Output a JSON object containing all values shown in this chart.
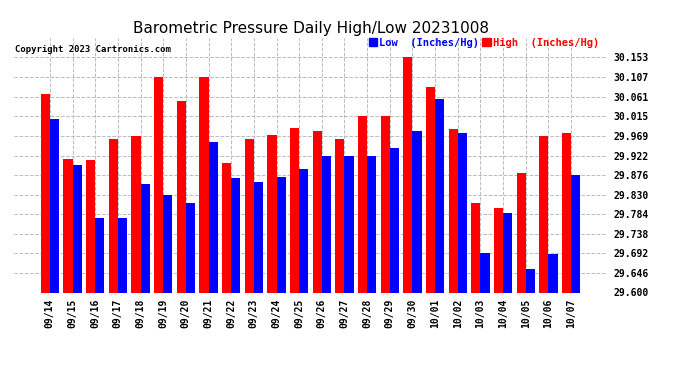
{
  "title": "Barometric Pressure Daily High/Low 20231008",
  "copyright": "Copyright 2023 Cartronics.com",
  "legend_low": "Low  (Inches/Hg)",
  "legend_high": "High  (Inches/Hg)",
  "dates": [
    "09/14",
    "09/15",
    "09/16",
    "09/17",
    "09/18",
    "09/19",
    "09/20",
    "09/21",
    "09/22",
    "09/23",
    "09/24",
    "09/25",
    "09/26",
    "09/27",
    "09/28",
    "09/29",
    "09/30",
    "10/01",
    "10/02",
    "10/03",
    "10/04",
    "10/05",
    "10/06",
    "10/07"
  ],
  "high_values": [
    30.068,
    29.915,
    29.912,
    29.96,
    29.968,
    30.107,
    30.05,
    30.107,
    29.905,
    29.96,
    29.97,
    29.988,
    29.98,
    29.96,
    30.016,
    30.016,
    30.153,
    30.083,
    29.985,
    29.81,
    29.8,
    29.882,
    29.969,
    29.975
  ],
  "low_values": [
    30.008,
    29.9,
    29.775,
    29.775,
    29.855,
    29.83,
    29.81,
    29.955,
    29.87,
    29.86,
    29.872,
    29.89,
    29.922,
    29.922,
    29.922,
    29.94,
    29.98,
    30.055,
    29.975,
    29.692,
    29.786,
    29.655,
    29.69,
    29.876
  ],
  "ylim_min": 29.6,
  "ylim_max": 30.2,
  "yticks": [
    29.6,
    29.646,
    29.692,
    29.738,
    29.784,
    29.83,
    29.876,
    29.922,
    29.969,
    30.015,
    30.061,
    30.107,
    30.153
  ],
  "bar_width": 0.4,
  "high_color": "#ff0000",
  "low_color": "#0000ff",
  "bg_color": "#ffffff",
  "grid_color": "#bbbbbb",
  "title_fontsize": 11,
  "tick_fontsize": 7,
  "legend_fontsize": 7.5
}
